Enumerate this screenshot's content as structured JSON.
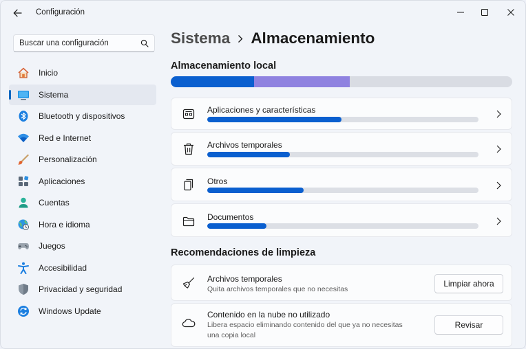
{
  "window": {
    "title": "Configuración"
  },
  "search": {
    "placeholder": "Buscar una configuración"
  },
  "sidebar": {
    "items": [
      {
        "label": "Inicio",
        "icon": "home-icon"
      },
      {
        "label": "Sistema",
        "icon": "monitor-icon",
        "active": true
      },
      {
        "label": "Bluetooth y dispositivos",
        "icon": "bluetooth-icon"
      },
      {
        "label": "Red e Internet",
        "icon": "wifi-icon"
      },
      {
        "label": "Personalización",
        "icon": "brush-icon"
      },
      {
        "label": "Aplicaciones",
        "icon": "apps-icon"
      },
      {
        "label": "Cuentas",
        "icon": "account-icon"
      },
      {
        "label": "Hora e idioma",
        "icon": "globe-clock-icon"
      },
      {
        "label": "Juegos",
        "icon": "gamepad-icon"
      },
      {
        "label": "Accesibilidad",
        "icon": "accessibility-icon"
      },
      {
        "label": "Privacidad y seguridad",
        "icon": "shield-icon"
      },
      {
        "label": "Windows Update",
        "icon": "update-icon"
      }
    ]
  },
  "breadcrumb": {
    "parent": "Sistema",
    "current": "Almacenamiento"
  },
  "local_storage": {
    "title": "Almacenamiento local",
    "segments": [
      {
        "fraction": 0.243,
        "color": "#0a5fcf"
      },
      {
        "fraction": 0.282,
        "color": "#8f82e0"
      }
    ],
    "track_color": "#d9dce3",
    "categories": [
      {
        "label": "Aplicaciones y características",
        "icon": "apps-features-icon",
        "fraction": 0.495
      },
      {
        "label": "Archivos temporales",
        "icon": "trash-icon",
        "fraction": 0.305
      },
      {
        "label": "Otros",
        "icon": "other-docs-icon",
        "fraction": 0.355
      },
      {
        "label": "Documentos",
        "icon": "folder-icon",
        "fraction": 0.218
      }
    ]
  },
  "cleanup": {
    "title": "Recomendaciones de limpieza",
    "items": [
      {
        "title": "Archivos temporales",
        "description_lines": [
          "Quita archivos temporales que no necesitas"
        ],
        "button": "Limpiar ahora",
        "icon": "broom-icon"
      },
      {
        "title": "Contenido en la nube no utilizado",
        "description_lines": [
          "Libera espacio eliminando contenido del que ya no necesitas",
          "una copia local"
        ],
        "button": "Revisar",
        "icon": "cloud-icon"
      }
    ]
  },
  "colors": {
    "accent": "#0067c0",
    "bar_fill": "#0a5fcf"
  }
}
